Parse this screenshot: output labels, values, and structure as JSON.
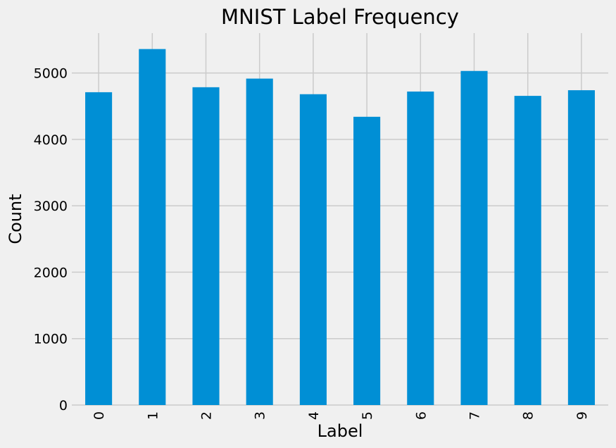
{
  "chart_data": {
    "type": "bar",
    "title": "MNIST Label Frequency",
    "xlabel": "Label",
    "ylabel": "Count",
    "categories": [
      "0",
      "1",
      "2",
      "3",
      "4",
      "5",
      "6",
      "7",
      "8",
      "9"
    ],
    "values": [
      4710,
      5360,
      4785,
      4915,
      4680,
      4340,
      4720,
      5030,
      4655,
      4740
    ],
    "ylim": [
      0,
      5600
    ],
    "yticks": [
      "0",
      "1000",
      "2000",
      "3000",
      "4000",
      "5000"
    ],
    "grid": true,
    "colors": {
      "bar": "#008fd5",
      "background": "#f0f0f0",
      "grid": "#cbcbcb"
    }
  }
}
